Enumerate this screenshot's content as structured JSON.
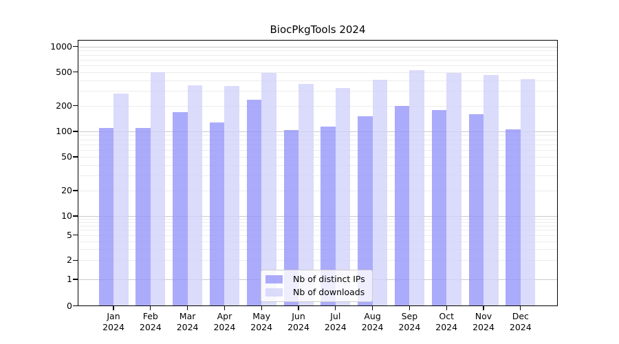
{
  "chart_data": {
    "type": "bar",
    "title": "BiocPkgTools 2024",
    "categories": [
      "Jan",
      "Feb",
      "Mar",
      "Apr",
      "May",
      "Jun",
      "Jul",
      "Aug",
      "Sep",
      "Oct",
      "Nov",
      "Dec"
    ],
    "x_tick_second_line": "2024",
    "series": [
      {
        "name": "Nb of distinct IPs",
        "color": "#9696fa",
        "alpha": 0.8,
        "values": [
          109,
          109,
          167,
          127,
          236,
          103,
          113,
          150,
          199,
          178,
          160,
          105
        ]
      },
      {
        "name": "Nb of downloads",
        "color": "#d2d2fa",
        "alpha": 0.8,
        "values": [
          278,
          500,
          348,
          340,
          487,
          363,
          322,
          405,
          528,
          490,
          460,
          410
        ]
      }
    ],
    "yticks": [
      1000,
      500,
      200,
      100,
      50,
      20,
      10,
      5,
      2,
      1,
      0
    ],
    "ylim": [
      0,
      1150
    ],
    "yscale": "symlog",
    "xlabel": "",
    "ylabel": "",
    "grid": true,
    "legend_position": "lower center"
  },
  "colors": {
    "background": "#ffffff",
    "spine": "#000000",
    "grid_minor": "#ececec",
    "grid_major": "#c9c9c9",
    "legend_border": "#cccccc"
  }
}
